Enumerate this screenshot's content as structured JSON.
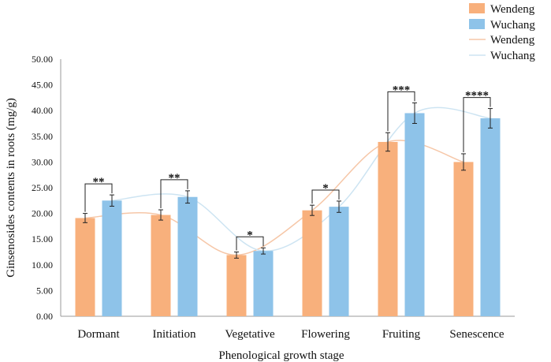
{
  "chart_data": {
    "type": "bar",
    "xlabel": "Phenological growth stage",
    "ylabel": "Ginsenosides contents in roots (mg/g)",
    "ylim": [
      0,
      50
    ],
    "yticks": [
      "0.00",
      "5.00",
      "10.00",
      "15.00",
      "20.00",
      "25.00",
      "30.00",
      "35.00",
      "40.00",
      "45.00",
      "50.00"
    ],
    "categories": [
      "Dormant",
      "Initiation",
      "Vegetative",
      "Flowering",
      "Fruiting",
      "Senescence"
    ],
    "series": [
      {
        "name": "Wendeng",
        "color": "#F8B07C",
        "values": [
          19.1,
          19.7,
          11.9,
          20.6,
          33.9,
          30.0
        ],
        "errors": [
          0.9,
          1.0,
          0.6,
          1.0,
          1.8,
          1.6
        ]
      },
      {
        "name": "Wuchang",
        "color": "#8EC3E9",
        "values": [
          22.5,
          23.2,
          12.7,
          21.3,
          39.5,
          38.5
        ],
        "errors": [
          1.1,
          1.2,
          0.6,
          1.1,
          2.0,
          1.9
        ]
      }
    ],
    "trendlines": [
      {
        "name": "Wendeng",
        "color": "#F6C7A8"
      },
      {
        "name": "Wuchang",
        "color": "#CDE4F2"
      }
    ],
    "significance": [
      "**",
      "**",
      "*",
      "*",
      "***",
      "****"
    ],
    "legend": {
      "position": "top-right",
      "entries": [
        {
          "label": "Wendeng",
          "kind": "bar"
        },
        {
          "label": "Wuchang",
          "kind": "bar"
        },
        {
          "label": "Wendeng",
          "kind": "line"
        },
        {
          "label": "Wuchang",
          "kind": "line"
        }
      ]
    }
  }
}
